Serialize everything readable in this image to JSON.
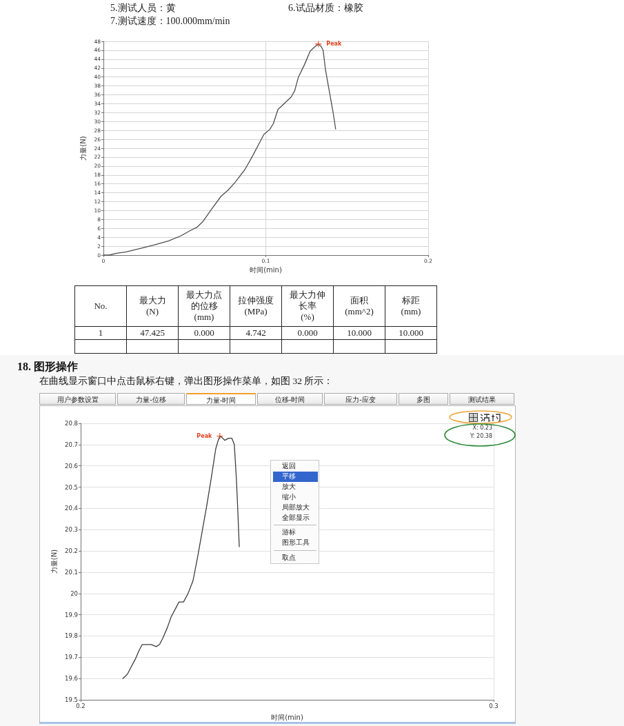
{
  "chart_data": [
    {
      "type": "line",
      "xlabel": "时间(min)",
      "ylabel": "力量(N)",
      "x": [
        0,
        0.0037,
        0.008,
        0.0139,
        0.0227,
        0.0315,
        0.0402,
        0.0475,
        0.0534,
        0.0578,
        0.0614,
        0.0666,
        0.0724,
        0.0768,
        0.0812,
        0.0871,
        0.0915,
        0.0958,
        0.0988,
        0.1024,
        0.1046,
        0.1075,
        0.1112,
        0.1156,
        0.1178,
        0.12,
        0.1236,
        0.1273,
        0.1302,
        0.1324,
        0.1342,
        0.1353,
        0.1368,
        0.1397,
        0.1415,
        0.143
      ],
      "series": [
        {
          "color": "#4d4d4d",
          "values": [
            0,
            0,
            0.4,
            0.7,
            1.5,
            2.3,
            3.2,
            4.3,
            5.5,
            6.3,
            7.6,
            10.3,
            13.2,
            14.6,
            16.4,
            19.2,
            22.0,
            25.0,
            27.1,
            28.2,
            29.5,
            32.7,
            34.0,
            35.5,
            36.9,
            39.9,
            42.6,
            45.8,
            46.8,
            47.4,
            46.8,
            46.0,
            41.5,
            35.6,
            31.9,
            28.3
          ]
        }
      ],
      "xlim": [
        0,
        0.2
      ],
      "xticks": [
        0,
        0.1,
        0.2
      ],
      "ylim": [
        0,
        48
      ],
      "yticks": [
        0,
        2,
        4,
        6,
        8,
        10,
        12,
        14,
        16,
        18,
        20,
        22,
        24,
        26,
        28,
        30,
        32,
        34,
        36,
        38,
        40,
        42,
        44,
        46,
        48
      ],
      "grid": true,
      "annotations": [
        "5.测试人员：黄",
        "6.试品材质：橡胶",
        "7.测试速度：100.000mm/min",
        "No.",
        "最大力\n(N)",
        "最大力点的位移\n(mm)",
        "拉伸强度\n(MPa)",
        "最大力伸长率\n(%)",
        "面积\n(mm^2)",
        "标距\n(mm)",
        "1",
        "47.425",
        "0.000",
        "4.742",
        "0.000",
        "10.000",
        "10.000",
        {
          "text": "Peak",
          "x": 0.1324,
          "y": 47.4
        }
      ]
    },
    {
      "type": "line",
      "title": "18. 图形操作",
      "subtitle": "在曲线显示窗口中点击鼠标右键，弹出图形操作菜单，如图 32 所示：",
      "xlabel": "时间(min)",
      "ylabel": "力量(N)",
      "x": [
        0.2102,
        0.2113,
        0.2121,
        0.2132,
        0.2141,
        0.2149,
        0.216,
        0.2171,
        0.2183,
        0.2191,
        0.2199,
        0.221,
        0.2219,
        0.223,
        0.2238,
        0.2249,
        0.226,
        0.2272,
        0.2283,
        0.2294,
        0.2305,
        0.2316,
        0.2327,
        0.2333,
        0.2337,
        0.2344,
        0.2349,
        0.2358,
        0.2366,
        0.2372,
        0.2377,
        0.238,
        0.2384
      ],
      "series": [
        {
          "color": "#3d3d3d",
          "values": [
            19.6,
            19.62,
            19.65,
            19.69,
            19.73,
            19.76,
            19.76,
            19.76,
            19.75,
            19.76,
            19.79,
            19.84,
            19.89,
            19.93,
            19.96,
            19.96,
            20.0,
            20.06,
            20.17,
            20.29,
            20.41,
            20.54,
            20.68,
            20.72,
            20.74,
            20.73,
            20.72,
            20.73,
            20.73,
            20.7,
            20.54,
            20.41,
            20.22
          ]
        }
      ],
      "xlim": [
        0.2,
        0.3
      ],
      "xticks": [
        0.2,
        0.3
      ],
      "ylim": [
        19.5,
        20.8
      ],
      "yticks": [
        19.5,
        19.6,
        19.7,
        19.8,
        19.9,
        20,
        20.1,
        20.2,
        20.3,
        20.4,
        20.5,
        20.6,
        20.7,
        20.8
      ],
      "grid": true,
      "annotations": [
        "用户参数设置",
        "力量-位移",
        "力量-时间",
        "位移-时间",
        "应力-应变",
        "多图",
        "测试结果",
        "返回",
        "平移",
        "放大",
        "缩小",
        "局部放大",
        "全部显示",
        "游标",
        "图形工具",
        "取点",
        "X: 0.23",
        "Y: 20.38",
        {
          "text": "Peak",
          "x": 0.2337,
          "y": 20.74
        }
      ]
    }
  ]
}
